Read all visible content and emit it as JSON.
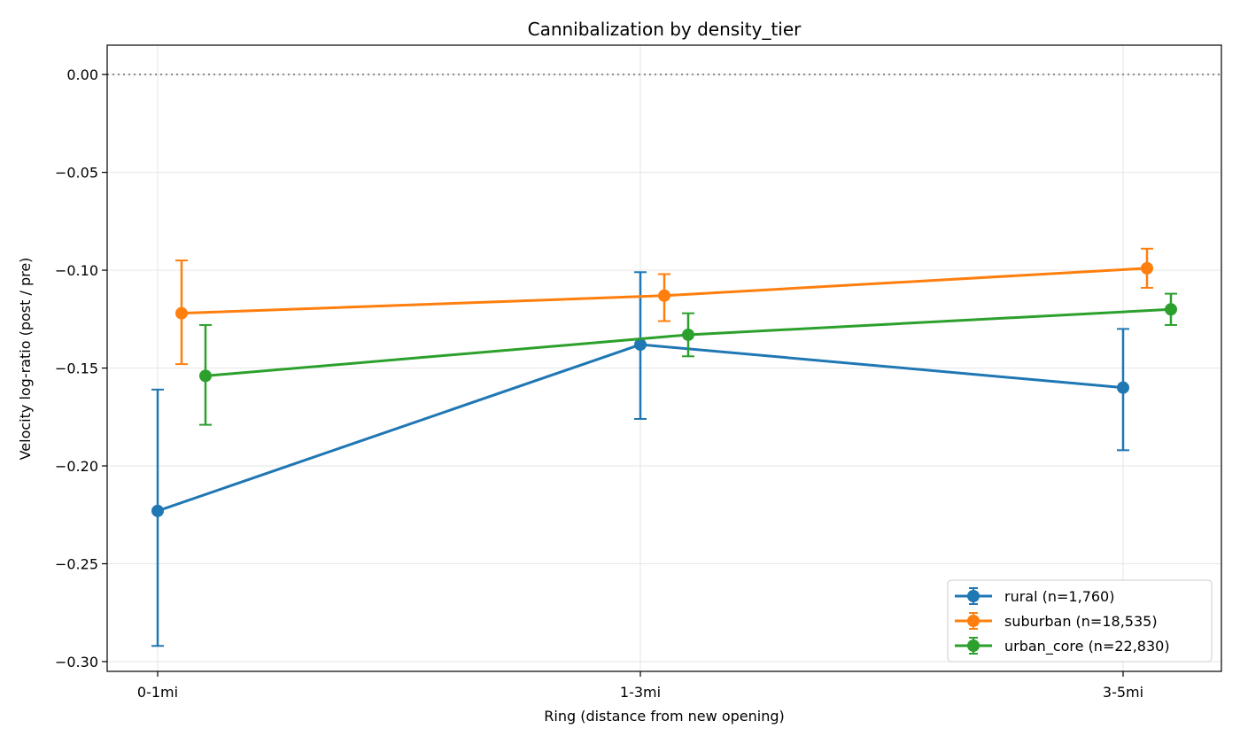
{
  "chart_data": {
    "type": "line",
    "title": "Cannibalization by density_tier",
    "xlabel": "Ring (distance from new opening)",
    "ylabel": "Velocity log-ratio (post / pre)",
    "categories": [
      "0-1mi",
      "1-3mi",
      "3-5mi"
    ],
    "ylim": [
      -0.305,
      0.015
    ],
    "yticks": [
      0.0,
      -0.05,
      -0.1,
      -0.15,
      -0.2,
      -0.25,
      -0.3
    ],
    "ytick_labels": [
      "0.00",
      "−0.05",
      "−0.10",
      "−0.15",
      "−0.20",
      "−0.25",
      "−0.30"
    ],
    "reference_line": {
      "y": 0.0,
      "style": "dotted",
      "color": "#888888"
    },
    "grid": true,
    "legend_position": "lower-right",
    "series": [
      {
        "name": "rural (n=1,760)",
        "color": "#1f77b4",
        "values": [
          -0.223,
          -0.138,
          -0.16
        ],
        "error_lower": [
          -0.292,
          -0.176,
          -0.192
        ],
        "error_upper": [
          -0.161,
          -0.101,
          -0.13
        ]
      },
      {
        "name": "suburban (n=18,535)",
        "color": "#ff7f0e",
        "values": [
          -0.122,
          -0.113,
          -0.099
        ],
        "error_lower": [
          -0.148,
          -0.126,
          -0.109
        ],
        "error_upper": [
          -0.095,
          -0.102,
          -0.089
        ]
      },
      {
        "name": "urban_core (n=22,830)",
        "color": "#2ca02c",
        "values": [
          -0.154,
          -0.133,
          -0.12
        ],
        "error_lower": [
          -0.179,
          -0.144,
          -0.128
        ],
        "error_upper": [
          -0.128,
          -0.122,
          -0.112
        ]
      }
    ]
  }
}
